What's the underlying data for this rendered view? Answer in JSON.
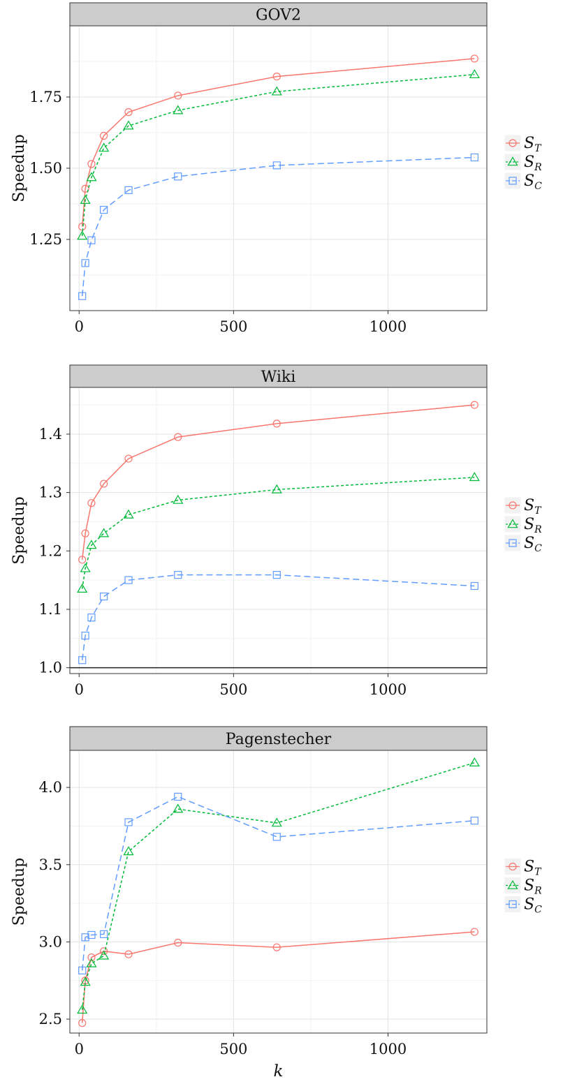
{
  "chart_data": [
    {
      "type": "line",
      "title": "GOV2",
      "xlabel": "",
      "ylabel": "Speedup",
      "xlim": [
        -30,
        1320
      ],
      "ylim": [
        1.0,
        2.0
      ],
      "xticks": [
        0,
        500,
        1000
      ],
      "xtick_labels": [
        "0",
        "500",
        "1000"
      ],
      "yticks": [
        1.25,
        1.5,
        1.75
      ],
      "ytick_labels": [
        "1.25",
        "1.50",
        "1.75"
      ],
      "grid": true,
      "legend": "right",
      "series": [
        {
          "name": "S_T",
          "color": "#F8766D",
          "marker": "circle",
          "dash": "solid",
          "x": [
            10,
            20,
            40,
            80,
            160,
            320,
            640,
            1280
          ],
          "y": [
            1.295,
            1.428,
            1.515,
            1.614,
            1.697,
            1.755,
            1.822,
            1.885
          ]
        },
        {
          "name": "S_R",
          "color": "#00BA38",
          "marker": "triangle",
          "dash": "short",
          "x": [
            10,
            20,
            40,
            80,
            160,
            320,
            640,
            1280
          ],
          "y": [
            1.262,
            1.388,
            1.468,
            1.571,
            1.649,
            1.703,
            1.769,
            1.829
          ]
        },
        {
          "name": "S_C",
          "color": "#619CFF",
          "marker": "square",
          "dash": "long",
          "x": [
            10,
            20,
            40,
            80,
            160,
            320,
            640,
            1280
          ],
          "y": [
            1.051,
            1.167,
            1.247,
            1.354,
            1.423,
            1.471,
            1.51,
            1.538
          ]
        }
      ]
    },
    {
      "type": "line",
      "title": "Wiki",
      "xlabel": "",
      "ylabel": "Speedup",
      "xlim": [
        -30,
        1320
      ],
      "ylim": [
        0.99,
        1.48
      ],
      "xticks": [
        0,
        500,
        1000
      ],
      "xtick_labels": [
        "0",
        "500",
        "1000"
      ],
      "yticks": [
        1.0,
        1.1,
        1.2,
        1.3,
        1.4
      ],
      "ytick_labels": [
        "1.0",
        "1.1",
        "1.2",
        "1.3",
        "1.4"
      ],
      "hline": 1.0,
      "grid": true,
      "legend": "right",
      "series": [
        {
          "name": "S_T",
          "color": "#F8766D",
          "marker": "circle",
          "dash": "solid",
          "x": [
            10,
            20,
            40,
            80,
            160,
            320,
            640,
            1280
          ],
          "y": [
            1.185,
            1.23,
            1.282,
            1.315,
            1.358,
            1.395,
            1.418,
            1.45
          ]
        },
        {
          "name": "S_R",
          "color": "#00BA38",
          "marker": "triangle",
          "dash": "short",
          "x": [
            10,
            20,
            40,
            80,
            160,
            320,
            640,
            1280
          ],
          "y": [
            1.135,
            1.17,
            1.21,
            1.23,
            1.262,
            1.287,
            1.305,
            1.326
          ]
        },
        {
          "name": "S_C",
          "color": "#619CFF",
          "marker": "square",
          "dash": "long",
          "x": [
            10,
            20,
            40,
            80,
            160,
            320,
            640,
            1280
          ],
          "y": [
            1.013,
            1.055,
            1.086,
            1.122,
            1.15,
            1.159,
            1.159,
            1.14
          ]
        }
      ]
    },
    {
      "type": "line",
      "title": "Pagenstecher",
      "xlabel": "k",
      "ylabel": "Speedup",
      "xlim": [
        -30,
        1320
      ],
      "ylim": [
        2.41,
        4.24
      ],
      "xticks": [
        0,
        500,
        1000
      ],
      "xtick_labels": [
        "0",
        "500",
        "1000"
      ],
      "yticks": [
        2.5,
        3.0,
        3.5,
        4.0
      ],
      "ytick_labels": [
        "2.5",
        "3.0",
        "3.5",
        "4.0"
      ],
      "grid": true,
      "legend": "right",
      "series": [
        {
          "name": "S_T",
          "color": "#F8766D",
          "marker": "circle",
          "dash": "solid",
          "x": [
            10,
            20,
            40,
            80,
            160,
            320,
            640,
            1280
          ],
          "y": [
            2.475,
            2.75,
            2.9,
            2.94,
            2.92,
            2.995,
            2.965,
            3.065
          ]
        },
        {
          "name": "S_R",
          "color": "#00BA38",
          "marker": "triangle",
          "dash": "short",
          "x": [
            10,
            20,
            40,
            80,
            160,
            320,
            640,
            1280
          ],
          "y": [
            2.56,
            2.74,
            2.86,
            2.91,
            3.585,
            3.86,
            3.77,
            4.16
          ]
        },
        {
          "name": "S_C",
          "color": "#619CFF",
          "marker": "square",
          "dash": "long",
          "x": [
            10,
            20,
            40,
            80,
            160,
            320,
            640,
            1280
          ],
          "y": [
            2.815,
            3.03,
            3.045,
            3.05,
            3.775,
            3.94,
            3.68,
            3.785
          ]
        }
      ]
    }
  ]
}
